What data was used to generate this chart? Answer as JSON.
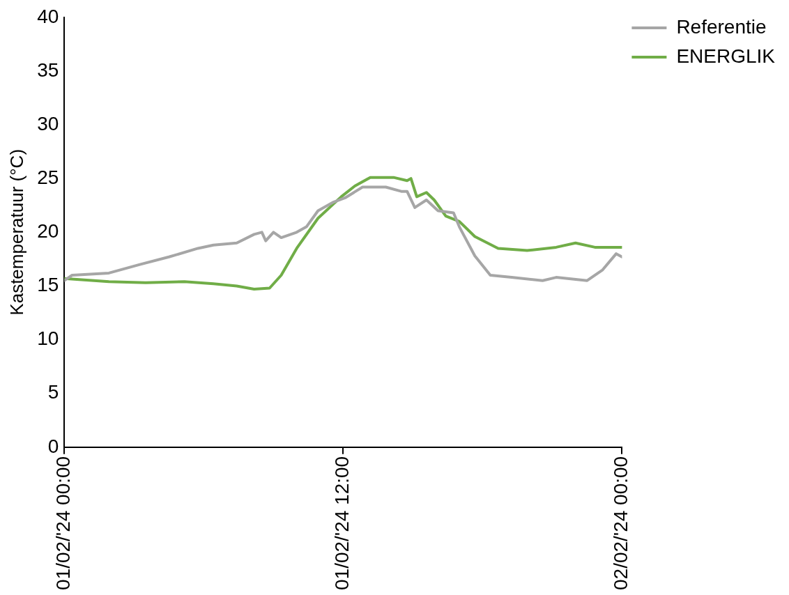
{
  "chart_data": {
    "type": "line",
    "ylabel": "Kastemperatuur (°C)",
    "xlim": [
      "2024-02-01T00:00",
      "2024-02-02T00:00"
    ],
    "xticks": [
      {
        "value": "2024-02-01T00:00",
        "label": "01/02/'24 00:00"
      },
      {
        "value": "2024-02-01T12:00",
        "label": "01/02/'24 12:00"
      },
      {
        "value": "2024-02-02T00:00",
        "label": "02/02/'24 00:00"
      }
    ],
    "ylim": [
      0,
      40
    ],
    "yticks": [
      0,
      5,
      10,
      15,
      20,
      25,
      30,
      35,
      40
    ],
    "grid": false,
    "legend": "top right",
    "marker": "none",
    "line_style": "solid",
    "series": [
      {
        "name": "Referentie",
        "color": "#a6a6a6",
        "x": [
          "2024-02-01T00:00",
          "2024-02-01T00:20",
          "2024-02-01T01:55",
          "2024-02-01T03:15",
          "2024-02-01T04:30",
          "2024-02-01T05:45",
          "2024-02-01T06:25",
          "2024-02-01T07:25",
          "2024-02-01T08:10",
          "2024-02-01T08:30",
          "2024-02-01T08:40",
          "2024-02-01T09:00",
          "2024-02-01T09:20",
          "2024-02-01T10:00",
          "2024-02-01T10:25",
          "2024-02-01T10:55",
          "2024-02-01T11:35",
          "2024-02-01T12:05",
          "2024-02-01T12:50",
          "2024-02-01T13:50",
          "2024-02-01T14:30",
          "2024-02-01T14:45",
          "2024-02-01T15:05",
          "2024-02-01T15:35",
          "2024-02-01T16:05",
          "2024-02-01T16:45",
          "2024-02-01T17:00",
          "2024-02-01T17:40",
          "2024-02-01T18:20",
          "2024-02-01T19:15",
          "2024-02-01T20:35",
          "2024-02-01T21:10",
          "2024-02-01T22:30",
          "2024-02-01T23:10",
          "2024-02-01T23:45",
          "2024-02-02T00:00"
        ],
        "values": [
          15.5,
          16.0,
          16.2,
          17.0,
          17.7,
          18.5,
          18.8,
          19.0,
          19.8,
          20.0,
          19.2,
          20.0,
          19.5,
          20.0,
          20.5,
          22.0,
          22.8,
          23.2,
          24.2,
          24.2,
          23.8,
          23.8,
          22.3,
          23.0,
          22.0,
          21.8,
          20.5,
          17.8,
          16.0,
          15.8,
          15.5,
          15.8,
          15.5,
          16.5,
          18.0,
          17.7
        ]
      },
      {
        "name": "ENERGLIK",
        "color": "#70ad47",
        "x": [
          "2024-02-01T00:00",
          "2024-02-01T01:55",
          "2024-02-01T03:30",
          "2024-02-01T05:10",
          "2024-02-01T06:25",
          "2024-02-01T07:25",
          "2024-02-01T08:10",
          "2024-02-01T08:50",
          "2024-02-01T09:20",
          "2024-02-01T10:00",
          "2024-02-01T10:55",
          "2024-02-01T11:55",
          "2024-02-01T12:30",
          "2024-02-01T13:10",
          "2024-02-01T14:10",
          "2024-02-01T14:45",
          "2024-02-01T14:55",
          "2024-02-01T15:10",
          "2024-02-01T15:35",
          "2024-02-01T15:55",
          "2024-02-01T16:25",
          "2024-02-01T17:00",
          "2024-02-01T17:40",
          "2024-02-01T18:40",
          "2024-02-01T19:55",
          "2024-02-01T21:10",
          "2024-02-01T22:00",
          "2024-02-01T22:50",
          "2024-02-02T00:00"
        ],
        "values": [
          15.7,
          15.4,
          15.3,
          15.4,
          15.2,
          15.0,
          14.7,
          14.8,
          16.0,
          18.5,
          21.3,
          23.3,
          24.3,
          25.1,
          25.1,
          24.8,
          25.0,
          23.3,
          23.7,
          23.0,
          21.5,
          21.0,
          19.6,
          18.5,
          18.3,
          18.6,
          19.0,
          18.6,
          18.6
        ]
      }
    ]
  }
}
